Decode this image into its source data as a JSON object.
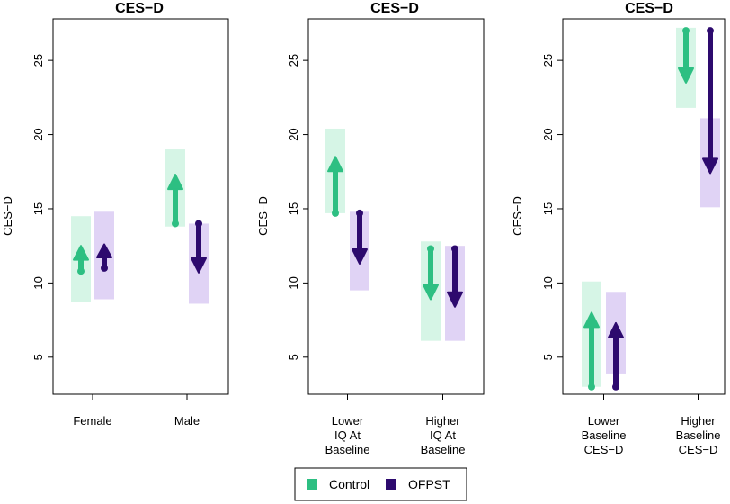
{
  "colors": {
    "control": "#2dbf82",
    "control_band": "#d6f5e6",
    "ofpst": "#2d0a6e",
    "ofpst_band": "#e0d3f5"
  },
  "legend": {
    "items": [
      {
        "label": "Control",
        "color_key": "control"
      },
      {
        "label": "OFPST",
        "color_key": "ofpst"
      }
    ]
  },
  "chart_data": [
    {
      "type": "arrow-range",
      "title": "CES−D",
      "ylabel": "CES−D",
      "ylim": [
        2.5,
        27.8
      ],
      "yticks": [
        5,
        10,
        15,
        20,
        25
      ],
      "categories": [
        [
          "Female"
        ],
        [
          "Male"
        ]
      ],
      "series": [
        {
          "name": "Control",
          "color_key": "control",
          "values": [
            {
              "from": 10.8,
              "to": 12.5,
              "band": [
                8.7,
                14.5
              ]
            },
            {
              "from": 14.0,
              "to": 17.3,
              "band": [
                13.8,
                19.0
              ]
            }
          ]
        },
        {
          "name": "OFPST",
          "color_key": "ofpst",
          "values": [
            {
              "from": 11.0,
              "to": 12.6,
              "band": [
                8.9,
                14.8
              ]
            },
            {
              "from": 14.0,
              "to": 10.7,
              "band": [
                8.6,
                14.0
              ]
            }
          ]
        }
      ]
    },
    {
      "type": "arrow-range",
      "title": "CES−D",
      "ylabel": "CES−D",
      "ylim": [
        2.5,
        27.8
      ],
      "yticks": [
        5,
        10,
        15,
        20,
        25
      ],
      "categories": [
        [
          "Lower",
          "IQ At",
          "Baseline"
        ],
        [
          "Higher",
          "IQ At",
          "Baseline"
        ]
      ],
      "series": [
        {
          "name": "Control",
          "color_key": "control",
          "values": [
            {
              "from": 14.7,
              "to": 18.5,
              "band": [
                14.7,
                20.4
              ]
            },
            {
              "from": 12.3,
              "to": 8.9,
              "band": [
                6.1,
                12.8
              ]
            }
          ]
        },
        {
          "name": "OFPST",
          "color_key": "ofpst",
          "values": [
            {
              "from": 14.7,
              "to": 11.3,
              "band": [
                9.5,
                14.8
              ]
            },
            {
              "from": 12.3,
              "to": 8.4,
              "band": [
                6.1,
                12.5
              ]
            }
          ]
        }
      ]
    },
    {
      "type": "arrow-range",
      "title": "CES−D",
      "ylabel": "CES−D",
      "ylim": [
        2.5,
        27.8
      ],
      "yticks": [
        5,
        10,
        15,
        20,
        25
      ],
      "categories": [
        [
          "Lower",
          "Baseline",
          "CES−D"
        ],
        [
          "Higher",
          "Baseline",
          "CES−D"
        ]
      ],
      "series": [
        {
          "name": "Control",
          "color_key": "control",
          "values": [
            {
              "from": 3.0,
              "to": 8.0,
              "band": [
                3.0,
                10.1
              ]
            },
            {
              "from": 27.0,
              "to": 23.5,
              "band": [
                21.8,
                27.2
              ]
            }
          ]
        },
        {
          "name": "OFPST",
          "color_key": "ofpst",
          "values": [
            {
              "from": 3.0,
              "to": 7.3,
              "band": [
                3.9,
                9.4
              ]
            },
            {
              "from": 27.0,
              "to": 17.4,
              "band": [
                15.1,
                21.1
              ]
            }
          ]
        }
      ]
    }
  ]
}
